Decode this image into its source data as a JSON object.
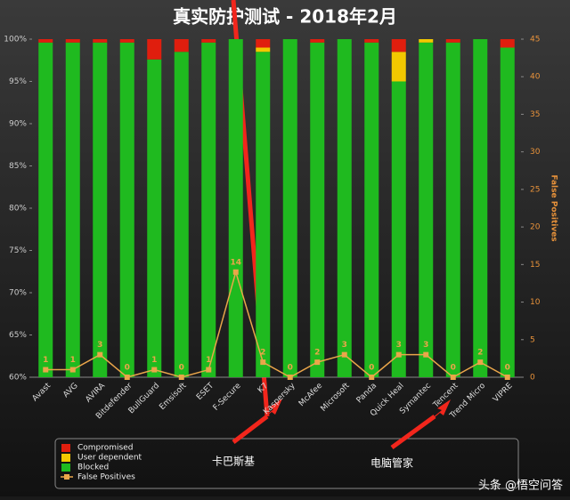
{
  "chart_data": {
    "type": "bar",
    "title": "真实防护测试 - 2018年2月",
    "y2_label": "False Positives",
    "categories": [
      "Avast",
      "AVG",
      "AVIRA",
      "Bitdefender",
      "BullGuard",
      "Emsisoft",
      "ESET",
      "F-Secure",
      "K7",
      "Kaspersky",
      "McAfee",
      "Microsoft",
      "Panda",
      "Quick Heal",
      "Symantec",
      "Tencent",
      "Trend Micro",
      "VIPRE"
    ],
    "series": [
      {
        "name": "Compromised",
        "color": "#e01e0e",
        "type": "bar",
        "values": [
          0.4,
          0.4,
          0.4,
          0.4,
          2.4,
          1.5,
          0.4,
          0,
          1.0,
          0,
          0.4,
          0,
          0.4,
          1.5,
          0,
          0.4,
          0,
          1.0
        ]
      },
      {
        "name": "User dependent",
        "color": "#f2c800",
        "type": "bar",
        "values": [
          0,
          0,
          0,
          0,
          0,
          0,
          0,
          0,
          0.5,
          0,
          0,
          0,
          0,
          3.5,
          0.4,
          0,
          0,
          0
        ]
      },
      {
        "name": "Blocked",
        "color": "#1fba1f",
        "type": "bar",
        "values": [
          99.6,
          99.6,
          99.6,
          99.6,
          97.6,
          98.5,
          99.6,
          100,
          98.5,
          100,
          99.6,
          100,
          99.6,
          95.0,
          99.6,
          99.6,
          100,
          99.0
        ]
      },
      {
        "name": "False Positives",
        "color": "#eaa64a",
        "type": "line",
        "axis": "y2",
        "values": [
          1,
          1,
          3,
          0,
          1,
          0,
          1,
          14,
          2,
          0,
          2,
          3,
          0,
          3,
          3,
          0,
          2,
          0
        ]
      }
    ],
    "ylim": [
      60,
      100
    ],
    "yticks": [
      {
        "value": 60,
        "label": "60%"
      },
      {
        "value": 65,
        "label": "65%"
      },
      {
        "value": 70,
        "label": "70%"
      },
      {
        "value": 75,
        "label": "75%"
      },
      {
        "value": 80,
        "label": "80%"
      },
      {
        "value": 85,
        "label": "85%"
      },
      {
        "value": 90,
        "label": "90%"
      },
      {
        "value": 95,
        "label": "95%"
      },
      {
        "value": 100,
        "label": "100%"
      }
    ],
    "y2lim": [
      0,
      45
    ],
    "y2ticks": [
      0,
      5,
      10,
      15,
      20,
      25,
      30,
      35,
      40,
      45
    ],
    "annotations": [
      {
        "text": "卡巴斯基"
      },
      {
        "text": "电脑管家"
      }
    ],
    "watermark": "头条 @悟空问答"
  }
}
